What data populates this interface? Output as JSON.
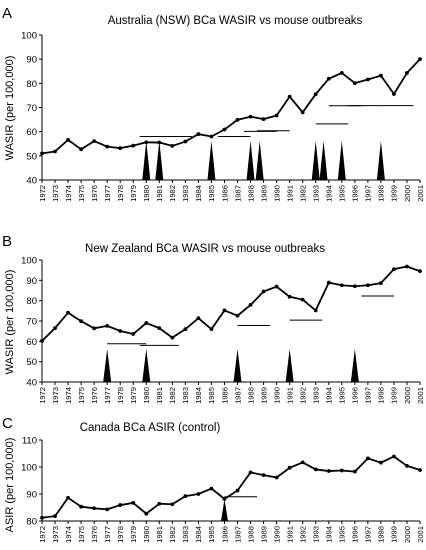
{
  "chart_data": [
    {
      "type": "line",
      "panel_label": "A",
      "title": "Australia (NSW) BCa WASIR vs mouse outbreaks",
      "xlabel": "",
      "ylabel": "WASIR (per 100,000)",
      "ylim": [
        40,
        100
      ],
      "yticks": [
        40,
        50,
        60,
        70,
        80,
        90,
        100
      ],
      "grid": false,
      "x": [
        1972,
        1973,
        1974,
        1975,
        1976,
        1977,
        1978,
        1979,
        1980,
        1981,
        1982,
        1983,
        1984,
        1985,
        1986,
        1987,
        1988,
        1989,
        1990,
        1991,
        1992,
        1993,
        1994,
        1995,
        1996,
        1997,
        1998,
        1999,
        2000,
        2001
      ],
      "series": [
        {
          "values": [
            51,
            51.8,
            56.6,
            52.7,
            56.1,
            53.8,
            53.2,
            54.2,
            55.6,
            55.5,
            54.1,
            55.9,
            59,
            58,
            60.9,
            64.9,
            66.2,
            65.2,
            66.7,
            74.5,
            68,
            75.5,
            81.9,
            84.3,
            80.1,
            81.6,
            83.2,
            75.6,
            84.3,
            90
          ]
        }
      ],
      "outbreaks": [
        1980,
        1981,
        1985,
        1988,
        1988.7,
        1993,
        1993.6,
        1995,
        1998
      ],
      "range_bars": [
        {
          "start": 1979.5,
          "end": 1982
        },
        {
          "start": 1981,
          "end": 1983.5
        },
        {
          "start": 1985.5,
          "end": 1988
        },
        {
          "start": 1987.5,
          "end": 1990
        },
        {
          "start": 1988.5,
          "end": 1991
        },
        {
          "start": 1993,
          "end": 1995.5
        },
        {
          "start": 1994,
          "end": 1996.5
        },
        {
          "start": 1995.5,
          "end": 1998
        },
        {
          "start": 1998,
          "end": 2000.5
        }
      ]
    },
    {
      "type": "line",
      "panel_label": "B",
      "title": "New Zealand BCa WASIR vs mouse outbreaks",
      "xlabel": "",
      "ylabel": "WASIR (per 100,000)",
      "ylim": [
        40,
        100
      ],
      "yticks": [
        40,
        50,
        60,
        70,
        80,
        90,
        100
      ],
      "grid": false,
      "x": [
        1972,
        1973,
        1974,
        1975,
        1976,
        1977,
        1978,
        1979,
        1980,
        1981,
        1982,
        1983,
        1984,
        1985,
        1986,
        1987,
        1988,
        1989,
        1990,
        1991,
        1992,
        1993,
        1994,
        1995,
        1996,
        1997,
        1998,
        1999,
        2000,
        2001
      ],
      "series": [
        {
          "values": [
            60.2,
            66.5,
            74.1,
            69.9,
            66.4,
            67.6,
            65.1,
            63.6,
            69,
            66.5,
            61.8,
            66,
            71.4,
            66,
            75.2,
            72.6,
            77.9,
            84.5,
            86.9,
            81.9,
            80.5,
            75.2,
            88.9,
            87.6,
            87.1,
            87.6,
            88.6,
            95.5,
            96.8,
            94.5
          ]
        }
      ],
      "outbreaks": [
        1977,
        1980,
        1987,
        1991,
        1996
      ],
      "range_bars": [
        {
          "start": 1977,
          "end": 1980
        },
        {
          "start": 1979.5,
          "end": 1982.5
        },
        {
          "start": 1987,
          "end": 1989.5
        },
        {
          "start": 1991,
          "end": 1993.5
        },
        {
          "start": 1996.5,
          "end": 1999
        }
      ]
    },
    {
      "type": "line",
      "panel_label": "C",
      "title": "Canada BCa ASIR (control)",
      "xlabel": "",
      "ylabel": "ASIR (per 100,000)",
      "ylim": [
        80,
        110
      ],
      "yticks": [
        80,
        90,
        100,
        110
      ],
      "grid": false,
      "x": [
        1972,
        1973,
        1974,
        1975,
        1976,
        1977,
        1978,
        1979,
        1980,
        1981,
        1982,
        1983,
        1984,
        1985,
        1986,
        1987,
        1988,
        1989,
        1990,
        1991,
        1992,
        1993,
        1994,
        1995,
        1996,
        1997,
        1998,
        1999,
        2000,
        2001
      ],
      "series": [
        {
          "values": [
            81.2,
            81.8,
            88.6,
            85.3,
            84.7,
            84.3,
            85.9,
            86.7,
            82.7,
            86.4,
            86.2,
            89.2,
            90,
            92,
            88.2,
            91.3,
            98,
            97,
            96.1,
            99.7,
            101.7,
            99.1,
            98.5,
            98.7,
            98.3,
            103.2,
            101.6,
            103.9,
            100.4,
            98.9
          ]
        }
      ],
      "outbreaks": [
        1986
      ],
      "range_bars": [
        {
          "start": 1986,
          "end": 1988.5
        }
      ]
    }
  ]
}
